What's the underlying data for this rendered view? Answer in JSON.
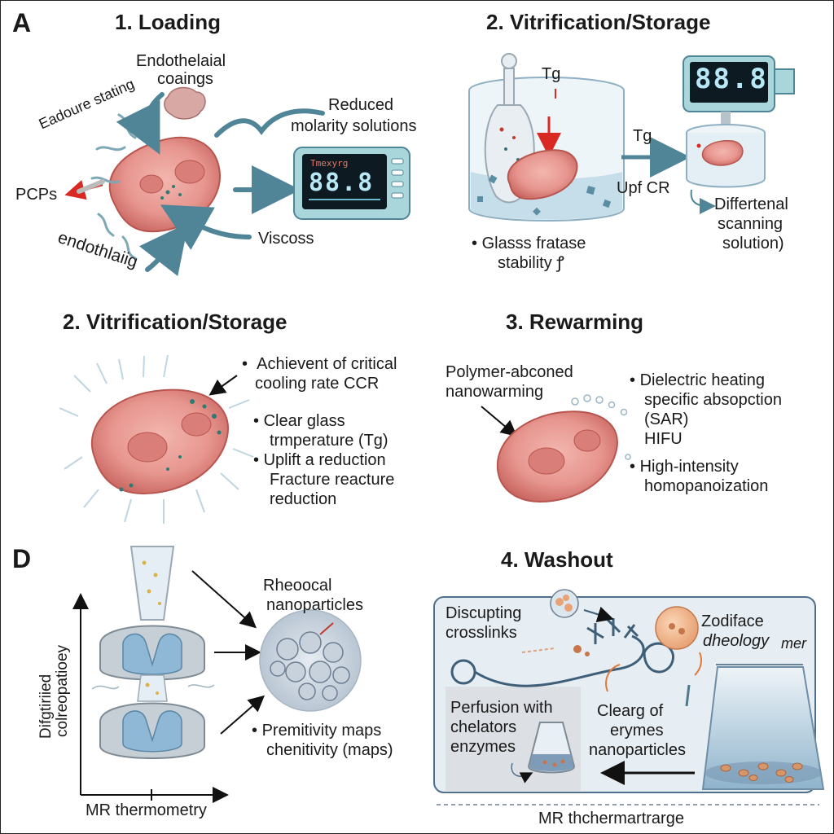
{
  "panels": {
    "a": {
      "letter": "A",
      "loading": {
        "title": "1. Loading",
        "endothelial_coatings": [
          "Endothelaial",
          "coaings"
        ],
        "eadoure": "Eadoure stating",
        "pcps": "PCPs",
        "endothlaiig": "endothlaiig",
        "reduced": [
          "Reduced",
          "molarity solutions"
        ],
        "viscoss": "Viscoss",
        "monitor_small": "Tmexyrg",
        "monitor_value": "88.8"
      },
      "vitrification": {
        "title": "2. Vitrification/Storage",
        "tg_top": "Tg",
        "tg_mid": "Tg",
        "upf": "Upf CR",
        "glass_bullet": [
          "Glasss fratase",
          "stability"
        ],
        "glass_symbol": "ꝭ",
        "dsc": [
          "Differtenal",
          "scanning",
          "solution)"
        ],
        "monitor_value": "88.8"
      }
    },
    "vitrification2": {
      "title": "2. Vitrification/Storage",
      "bullets": [
        [
          "Achievent of critical",
          "cooling rate CCR"
        ],
        [
          "Clear glass",
          "trmperature (Tg)"
        ],
        [
          "Uplift a reduction",
          "Fracture reacture",
          "reduction"
        ]
      ]
    },
    "rewarming": {
      "title": "3. Rewarming",
      "polymer": [
        "Polymer-abconed",
        "nanowarming"
      ],
      "bullets": [
        [
          "Dielectric heating",
          "specific absopction",
          "(SAR)",
          "HIFU"
        ],
        [
          "High-intensity",
          "homopanoization"
        ]
      ]
    },
    "d": {
      "letter": "D",
      "ylabel": [
        "Difgtiriied",
        "colreopatioey"
      ],
      "xlabel": "MR thermometry",
      "rheo": [
        "Rheoocal",
        "nanoparticles"
      ],
      "premittivity": [
        "Premitivity maps",
        "chenitivity (maps)"
      ]
    },
    "washout": {
      "title": "4. Washout",
      "discupting": [
        "Discupting",
        "crosslinks"
      ],
      "zodiface": "Zodiface",
      "dheology": "dheology",
      "mer": "mer",
      "perfusion": [
        "Perfusion with",
        "chelators",
        "enzymes"
      ],
      "clearg": [
        "Clearg of",
        "erymes",
        "nanoparticles"
      ],
      "footer": "MR thchermartrarge"
    }
  },
  "colors": {
    "tissue": "#e7968f",
    "tissue_dark": "#c96560",
    "arrow_teal": "#4f8597",
    "red_arrow": "#d82a22",
    "monitor_frame": "#a9d6db",
    "screen": "#0d1a22",
    "screen_digits": "#b8e8f5",
    "washout_bg": "#e6edf3"
  }
}
